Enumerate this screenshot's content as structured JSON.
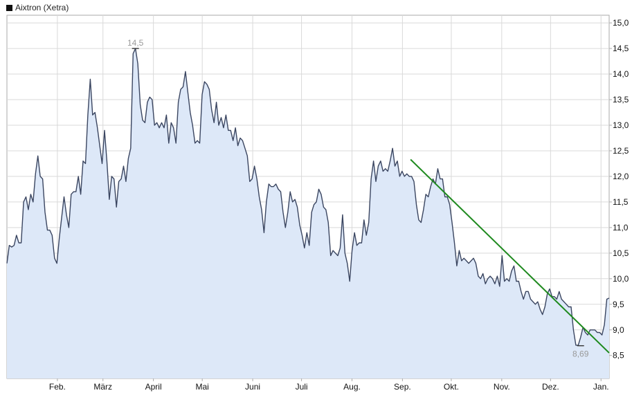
{
  "legend": {
    "label": "Aixtron (Xetra)"
  },
  "colors": {
    "line": "#3a4560",
    "area": "#dde8f8",
    "grid": "#d9d9d9",
    "trend": "#1f8a1f",
    "marker": "#333333",
    "axis": "#aaaaaa"
  },
  "chart_data": {
    "type": "area",
    "series": [
      {
        "name": "Aixtron (Xetra)",
        "values": [
          10.3,
          10.65,
          10.62,
          10.65,
          10.85,
          10.7,
          10.7,
          11.5,
          11.6,
          11.35,
          11.65,
          11.5,
          12.05,
          12.4,
          12.0,
          11.95,
          11.3,
          10.95,
          10.95,
          10.85,
          10.4,
          10.3,
          10.8,
          11.2,
          11.6,
          11.25,
          11.0,
          11.65,
          11.7,
          11.7,
          12.0,
          11.65,
          12.3,
          12.25,
          13.2,
          13.9,
          13.2,
          13.25,
          12.95,
          12.6,
          12.25,
          12.9,
          12.3,
          11.55,
          12.0,
          11.95,
          11.4,
          11.9,
          11.95,
          12.2,
          11.9,
          12.35,
          12.55,
          14.4,
          14.5,
          14.2,
          13.4,
          13.1,
          13.05,
          13.45,
          13.55,
          13.5,
          13.0,
          13.05,
          12.95,
          13.05,
          12.95,
          13.2,
          12.65,
          13.05,
          12.95,
          12.65,
          13.45,
          13.7,
          13.75,
          14.05,
          13.65,
          13.25,
          13.0,
          12.65,
          12.7,
          12.65,
          13.6,
          13.85,
          13.8,
          13.7,
          13.3,
          13.05,
          13.45,
          13.0,
          13.15,
          12.95,
          13.2,
          12.9,
          12.9,
          12.7,
          12.95,
          12.6,
          12.75,
          12.7,
          12.55,
          12.4,
          11.9,
          11.95,
          12.2,
          11.95,
          11.6,
          11.35,
          10.9,
          11.5,
          11.85,
          11.8,
          11.8,
          11.85,
          11.75,
          11.7,
          11.3,
          11.0,
          11.3,
          11.7,
          11.5,
          11.55,
          11.4,
          11.05,
          10.85,
          10.6,
          10.9,
          10.65,
          11.3,
          11.45,
          11.5,
          11.75,
          11.65,
          11.4,
          11.35,
          11.1,
          10.45,
          10.55,
          10.5,
          10.45,
          10.6,
          11.25,
          10.5,
          10.3,
          9.95,
          10.55,
          10.9,
          10.65,
          10.7,
          10.7,
          11.15,
          10.85,
          11.1,
          11.95,
          12.3,
          11.9,
          12.2,
          12.3,
          12.1,
          12.15,
          12.1,
          12.3,
          12.55,
          12.2,
          12.3,
          12.0,
          12.1,
          12.0,
          12.05,
          12.0,
          12.0,
          11.9,
          11.45,
          11.15,
          11.1,
          11.35,
          11.65,
          11.6,
          11.8,
          11.95,
          11.85,
          12.15,
          11.95,
          11.95,
          11.6,
          11.6,
          11.45,
          11.1,
          10.7,
          10.25,
          10.55,
          10.35,
          10.4,
          10.35,
          10.3,
          10.35,
          10.4,
          10.3,
          10.05,
          10.0,
          10.1,
          9.9,
          10.0,
          10.05,
          10.0,
          9.9,
          10.05,
          9.85,
          10.45,
          9.95,
          10.0,
          9.95,
          10.15,
          10.25,
          9.95,
          9.95,
          9.75,
          9.6,
          9.75,
          9.75,
          9.6,
          9.55,
          9.5,
          9.55,
          9.4,
          9.3,
          9.45,
          9.7,
          9.8,
          9.65,
          9.65,
          9.6,
          9.75,
          9.6,
          9.55,
          9.5,
          9.45,
          9.45,
          9.0,
          8.7,
          8.7,
          8.85,
          9.05,
          8.95,
          8.9,
          9.0,
          9.0,
          9.0,
          8.95,
          8.95,
          8.9,
          9.1,
          9.6,
          9.62
        ]
      }
    ],
    "x_tick_labels": [
      "Feb.",
      "März",
      "April",
      "Mai",
      "Juni",
      "Juli",
      "Aug.",
      "Sep.",
      "Okt.",
      "Nov.",
      "Dez.",
      "Jan."
    ],
    "x_tick_positions": [
      31,
      59,
      90,
      120,
      151,
      181,
      212,
      243,
      273,
      304,
      334,
      365
    ],
    "x_range": [
      0,
      370
    ],
    "y_ticks": [
      "15,0",
      "14,5",
      "14,0",
      "13,5",
      "13,0",
      "12,5",
      "12,0",
      "11,5",
      "11,0",
      "10,5",
      "10,0",
      "9,5",
      "9,0",
      "8,5"
    ],
    "y_tick_values": [
      15.0,
      14.5,
      14.0,
      13.5,
      13.0,
      12.5,
      12.0,
      11.5,
      11.0,
      10.5,
      10.0,
      9.5,
      9.0,
      8.5
    ],
    "ylim": [
      8.05,
      15.15
    ],
    "grid": true,
    "y_axis_side": "right",
    "annotations": [
      {
        "label": "14,5",
        "value": 14.5,
        "kind": "high",
        "index": 54
      },
      {
        "label": "8,69",
        "value": 8.69,
        "kind": "low",
        "index": 241
      }
    ],
    "trendline": {
      "x": [
        248,
        370
      ],
      "y": [
        12.33,
        8.55
      ]
    }
  }
}
